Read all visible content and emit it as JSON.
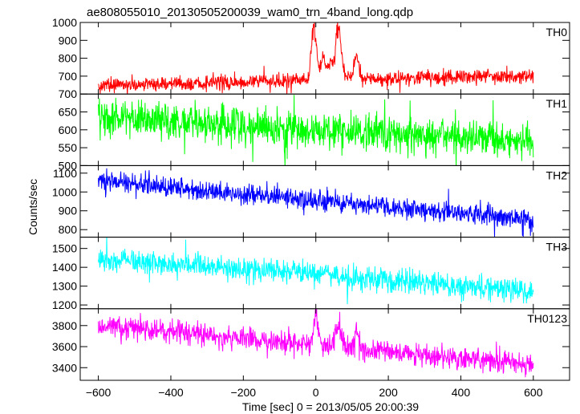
{
  "chart_data": {
    "type": "line",
    "title": "ae808055010_20130505200039_wam0_trn_4band_long.qdp",
    "xlabel": "Time [sec] 0 = 2013/05/05 20:00:39",
    "ylabel": "Counts/sec",
    "xlim": [
      -650,
      700
    ],
    "x_ticks": [
      -600,
      -400,
      -200,
      0,
      200,
      400,
      600
    ],
    "x_tick_labels": [
      "−600",
      "−400",
      "−200",
      "0",
      "200",
      "400",
      "600"
    ],
    "x_range_data": [
      -600,
      600
    ],
    "grid": false,
    "legend": "none",
    "panels": [
      {
        "name": "TH0",
        "color": "#ff0000",
        "ylim": [
          600,
          1000
        ],
        "y_ticks": [
          700,
          800,
          900,
          1000
        ],
        "y_tick_labels": [
          "700",
          "800",
          "900",
          "1000"
        ],
        "baseline_start": 650,
        "baseline_end": 705,
        "noise": 35,
        "features": [
          {
            "t": -5,
            "peak": 1000
          },
          {
            "t": 20,
            "peak": 820
          },
          {
            "t": 42,
            "peak": 780
          },
          {
            "t": 62,
            "peak": 990
          },
          {
            "t": 78,
            "peak": 720
          },
          {
            "t": 112,
            "peak": 820
          }
        ]
      },
      {
        "name": "TH1",
        "color": "#00ff00",
        "ylim": [
          500,
          700
        ],
        "y_ticks": [
          500,
          550,
          600,
          650,
          700
        ],
        "y_tick_labels": [
          "500",
          "550",
          "600",
          "650",
          "700"
        ],
        "baseline_start": 635,
        "baseline_end": 565,
        "noise": 45,
        "features": []
      },
      {
        "name": "TH2",
        "color": "#0000ff",
        "ylim": [
          760,
          1140
        ],
        "y_ticks": [
          800,
          900,
          1000,
          1100
        ],
        "y_tick_labels": [
          "800",
          "900",
          "1000",
          "1100"
        ],
        "baseline_start": 1060,
        "baseline_end": 850,
        "noise": 45,
        "features": []
      },
      {
        "name": "TH3",
        "color": "#00ffff",
        "ylim": [
          1180,
          1560
        ],
        "y_ticks": [
          1200,
          1300,
          1400,
          1500
        ],
        "y_tick_labels": [
          "1200",
          "1300",
          "1400",
          "1500"
        ],
        "baseline_start": 1450,
        "baseline_end": 1270,
        "noise": 55,
        "features": []
      },
      {
        "name": "TH0123",
        "color": "#ff00ff",
        "ylim": [
          3280,
          3960
        ],
        "y_ticks": [
          3400,
          3600,
          3800
        ],
        "y_tick_labels": [
          "3400",
          "3600",
          "3800"
        ],
        "baseline_start": 3800,
        "baseline_end": 3430,
        "noise": 90,
        "features": [
          {
            "t": 0,
            "peak": 3930
          },
          {
            "t": 62,
            "peak": 3830
          },
          {
            "t": 112,
            "peak": 3760
          }
        ]
      }
    ]
  }
}
